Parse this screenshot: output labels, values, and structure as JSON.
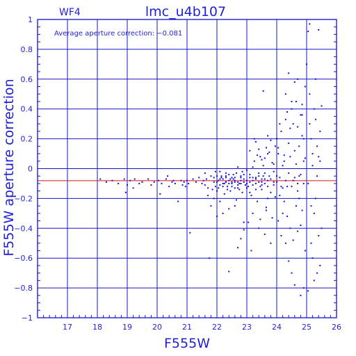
{
  "header": {
    "chip": "WF4",
    "title": "lmc_u4b107"
  },
  "annotation": "Average aperture correction: −0.081",
  "colors": {
    "frame": "#1010d0",
    "grid": "#1414c8",
    "text": "#1f1fd6",
    "points": "#1010e0",
    "mean_line": "#d01010"
  },
  "chart_data": {
    "type": "scatter",
    "title": "lmc_u4b107",
    "subtitle": "WF4",
    "xlabel": "F555W",
    "ylabel": "F555W aperture correction",
    "xlim": [
      16,
      26
    ],
    "ylim": [
      -1,
      1
    ],
    "xticks": [
      17,
      18,
      19,
      20,
      21,
      22,
      23,
      24,
      25,
      26
    ],
    "yticks": [
      -1,
      -0.8,
      -0.6,
      -0.4,
      -0.2,
      0,
      0.2,
      0.4,
      0.6,
      0.8,
      1
    ],
    "xtick_labels": [
      "17",
      "18",
      "19",
      "20",
      "21",
      "22",
      "23",
      "24",
      "25",
      "26"
    ],
    "ytick_labels": [
      "−1",
      "−0.8",
      "−0.6",
      "−0.4",
      "−0.2",
      "0",
      "0.2",
      "0.4",
      "0.6",
      "0.8",
      "1"
    ],
    "grid": true,
    "reference_line": {
      "y": -0.081
    },
    "points": [
      [
        18.1,
        -0.07
      ],
      [
        18.3,
        -0.09
      ],
      [
        18.5,
        -0.08
      ],
      [
        18.7,
        -0.1
      ],
      [
        18.9,
        -0.07
      ],
      [
        18.95,
        -0.16
      ],
      [
        19.0,
        -0.11
      ],
      [
        19.1,
        -0.08
      ],
      [
        19.2,
        -0.13
      ],
      [
        19.25,
        -0.07
      ],
      [
        19.4,
        -0.1
      ],
      [
        19.5,
        -0.09
      ],
      [
        19.7,
        -0.07
      ],
      [
        19.8,
        -0.11
      ],
      [
        19.9,
        -0.09
      ],
      [
        20.05,
        -0.08
      ],
      [
        20.1,
        -0.17
      ],
      [
        20.15,
        -0.1
      ],
      [
        20.3,
        -0.07
      ],
      [
        20.35,
        -0.05
      ],
      [
        20.4,
        -0.12
      ],
      [
        20.5,
        -0.09
      ],
      [
        20.55,
        -0.08
      ],
      [
        20.6,
        -0.1
      ],
      [
        20.7,
        -0.22
      ],
      [
        20.8,
        -0.08
      ],
      [
        20.85,
        -0.11
      ],
      [
        20.9,
        -0.09
      ],
      [
        20.95,
        -0.12
      ],
      [
        21.0,
        -0.08
      ],
      [
        21.05,
        -0.1
      ],
      [
        21.1,
        -0.43
      ],
      [
        21.2,
        -0.07
      ],
      [
        21.3,
        -0.09
      ],
      [
        21.4,
        -0.06
      ],
      [
        21.5,
        -0.1
      ],
      [
        21.55,
        -0.08
      ],
      [
        21.6,
        -0.11
      ],
      [
        21.65,
        -0.07
      ],
      [
        21.7,
        -0.13
      ],
      [
        21.75,
        -0.6
      ],
      [
        21.8,
        -0.05
      ],
      [
        21.85,
        -0.14
      ],
      [
        21.9,
        -0.09
      ],
      [
        21.95,
        -0.12
      ],
      [
        21.6,
        -0.03
      ],
      [
        21.7,
        -0.18
      ],
      [
        21.8,
        -0.25
      ],
      [
        21.9,
        -0.2
      ],
      [
        21.95,
        -0.02
      ],
      [
        22.0,
        -0.15
      ],
      [
        22.05,
        -0.08
      ],
      [
        22.1,
        -0.22
      ],
      [
        22.15,
        -0.05
      ],
      [
        22.2,
        -0.1
      ],
      [
        22.25,
        -0.17
      ],
      [
        22.3,
        -0.03
      ],
      [
        22.35,
        -0.12
      ],
      [
        22.4,
        -0.27
      ],
      [
        22.45,
        -0.07
      ],
      [
        22.0,
        -0.32
      ],
      [
        22.1,
        -0.02
      ],
      [
        22.2,
        -0.3
      ],
      [
        22.3,
        -0.06
      ],
      [
        22.35,
        -0.14
      ],
      [
        22.4,
        -0.69
      ],
      [
        22.5,
        -0.09
      ],
      [
        22.55,
        -0.04
      ],
      [
        22.6,
        -0.13
      ],
      [
        22.65,
        -0.21
      ],
      [
        22.7,
        0.01
      ],
      [
        22.75,
        -0.1
      ],
      [
        22.8,
        -0.06
      ],
      [
        22.85,
        -0.16
      ],
      [
        22.9,
        -0.36
      ],
      [
        22.0,
        -0.05
      ],
      [
        22.1,
        -0.11
      ],
      [
        22.2,
        -0.07
      ],
      [
        22.3,
        -0.09
      ],
      [
        22.4,
        -0.04
      ],
      [
        22.5,
        -0.12
      ],
      [
        22.6,
        -0.08
      ],
      [
        22.7,
        -0.11
      ],
      [
        22.8,
        -0.05
      ],
      [
        22.9,
        -0.09
      ],
      [
        22.05,
        -0.13
      ],
      [
        22.15,
        -0.06
      ],
      [
        22.25,
        -0.1
      ],
      [
        22.45,
        -0.15
      ],
      [
        22.55,
        -0.07
      ],
      [
        22.65,
        -0.03
      ],
      [
        22.75,
        -0.14
      ],
      [
        22.85,
        -0.02
      ],
      [
        22.95,
        -0.11
      ],
      [
        22.9,
        -0.41
      ],
      [
        22.8,
        -0.47
      ],
      [
        22.7,
        -0.53
      ],
      [
        22.6,
        -0.25
      ],
      [
        23.0,
        -0.08
      ],
      [
        23.05,
        -0.12
      ],
      [
        23.1,
        -0.04
      ],
      [
        23.15,
        -0.18
      ],
      [
        23.2,
        -0.06
      ],
      [
        23.25,
        0.05
      ],
      [
        23.3,
        -0.1
      ],
      [
        23.35,
        -0.22
      ],
      [
        23.4,
        -0.03
      ],
      [
        23.45,
        0.08
      ],
      [
        23.5,
        -0.14
      ],
      [
        23.55,
        0.02
      ],
      [
        23.6,
        -0.07
      ],
      [
        23.65,
        -0.28
      ],
      [
        23.7,
        0.1
      ],
      [
        23.75,
        -0.05
      ],
      [
        23.8,
        -0.16
      ],
      [
        23.85,
        0.04
      ],
      [
        23.9,
        -0.09
      ],
      [
        23.95,
        0.15
      ],
      [
        23.05,
        -0.36
      ],
      [
        23.1,
        0.12
      ],
      [
        23.2,
        -0.3
      ],
      [
        23.3,
        0.18
      ],
      [
        23.4,
        -0.4
      ],
      [
        23.5,
        0.06
      ],
      [
        23.6,
        -0.44
      ],
      [
        23.7,
        0.22
      ],
      [
        23.8,
        -0.5
      ],
      [
        23.9,
        0.03
      ],
      [
        23.15,
        -0.55
      ],
      [
        23.45,
        -0.34
      ],
      [
        23.55,
        0.52
      ],
      [
        23.65,
        -0.26
      ],
      [
        23.75,
        0.11
      ],
      [
        23.85,
        -0.33
      ],
      [
        23.95,
        -0.19
      ],
      [
        23.0,
        -0.01
      ],
      [
        23.1,
        -0.16
      ],
      [
        23.2,
        0.01
      ],
      [
        23.3,
        -0.07
      ],
      [
        23.4,
        0.13
      ],
      [
        23.5,
        -0.11
      ],
      [
        23.6,
        0.07
      ],
      [
        23.7,
        -0.2
      ],
      [
        23.8,
        0.19
      ],
      [
        23.9,
        -0.02
      ],
      [
        23.25,
        0.2
      ],
      [
        23.35,
        0.09
      ],
      [
        23.45,
        -0.12
      ],
      [
        23.55,
        -0.05
      ],
      [
        23.65,
        0.14
      ],
      [
        24.0,
        -0.05
      ],
      [
        24.05,
        0.1
      ],
      [
        24.1,
        -0.18
      ],
      [
        24.15,
        0.25
      ],
      [
        24.2,
        -0.3
      ],
      [
        24.25,
        0.05
      ],
      [
        24.3,
        0.33
      ],
      [
        24.35,
        -0.12
      ],
      [
        24.4,
        0.17
      ],
      [
        24.45,
        -0.4
      ],
      [
        24.5,
        0.4
      ],
      [
        24.55,
        -0.08
      ],
      [
        24.6,
        0.12
      ],
      [
        24.65,
        -0.25
      ],
      [
        24.7,
        0.28
      ],
      [
        24.0,
        0.2
      ],
      [
        24.05,
        -0.35
      ],
      [
        24.1,
        0.3
      ],
      [
        24.15,
        -0.45
      ],
      [
        24.2,
        0.02
      ],
      [
        24.25,
        -0.22
      ],
      [
        24.3,
        -0.5
      ],
      [
        24.35,
        0.38
      ],
      [
        24.4,
        -0.62
      ],
      [
        24.45,
        0.08
      ],
      [
        24.5,
        -0.7
      ],
      [
        24.55,
        0.3
      ],
      [
        24.6,
        -0.78
      ],
      [
        24.65,
        0.03
      ],
      [
        24.7,
        -0.15
      ],
      [
        24.3,
        0.5
      ],
      [
        24.4,
        0.64
      ],
      [
        24.5,
        0.45
      ],
      [
        24.6,
        0.58
      ],
      [
        24.7,
        0.6
      ],
      [
        24.75,
        -0.05
      ],
      [
        24.8,
        0.36
      ],
      [
        24.85,
        -0.28
      ],
      [
        24.9,
        0.2
      ],
      [
        24.95,
        -0.55
      ],
      [
        24.75,
        0.15
      ],
      [
        24.8,
        -0.38
      ],
      [
        24.85,
        0.43
      ],
      [
        24.9,
        -0.1
      ],
      [
        24.95,
        0.07
      ],
      [
        24.7,
        -0.42
      ],
      [
        24.8,
        -0.85
      ],
      [
        24.85,
        0.22
      ],
      [
        24.9,
        -0.8
      ],
      [
        24.95,
        0.55
      ],
      [
        24.9,
        0.05
      ],
      [
        24.85,
        0.36
      ],
      [
        24.75,
        -0.2
      ],
      [
        24.65,
        0.45
      ],
      [
        24.55,
        -0.48
      ],
      [
        24.45,
        0.27
      ],
      [
        24.35,
        -0.32
      ],
      [
        24.25,
        0.09
      ],
      [
        24.15,
        -0.12
      ],
      [
        24.05,
        0.14
      ],
      [
        25.0,
        0.7
      ],
      [
        25.05,
        -0.1
      ],
      [
        25.1,
        0.3
      ],
      [
        25.15,
        -0.5
      ],
      [
        25.2,
        0.1
      ],
      [
        25.25,
        -0.3
      ],
      [
        25.3,
        0.6
      ],
      [
        25.35,
        -0.7
      ],
      [
        25.4,
        0.93
      ],
      [
        25.45,
        0.05
      ],
      [
        25.5,
        -0.4
      ],
      [
        25.05,
        0.92
      ],
      [
        25.1,
        0.97
      ],
      [
        25.15,
        0.2
      ],
      [
        25.2,
        -0.6
      ],
      [
        25.25,
        0.4
      ],
      [
        25.3,
        -0.2
      ],
      [
        25.35,
        0.15
      ],
      [
        25.4,
        -0.45
      ],
      [
        25.45,
        0.25
      ],
      [
        25.5,
        0.42
      ],
      [
        25.05,
        -0.82
      ],
      [
        25.1,
        0.5
      ],
      [
        25.15,
        -0.25
      ],
      [
        25.2,
        0.02
      ],
      [
        25.25,
        -0.75
      ],
      [
        25.3,
        0.33
      ],
      [
        25.35,
        -0.05
      ],
      [
        25.4,
        0.08
      ],
      [
        25.45,
        -0.65
      ],
      [
        22.3,
        -0.09
      ],
      [
        22.4,
        -0.08
      ],
      [
        22.5,
        -0.1
      ],
      [
        22.6,
        -0.06
      ],
      [
        22.7,
        -0.09
      ],
      [
        22.8,
        -0.08
      ],
      [
        22.9,
        -0.07
      ],
      [
        23.0,
        -0.1
      ],
      [
        23.1,
        -0.09
      ],
      [
        23.2,
        -0.08
      ],
      [
        23.3,
        -0.06
      ],
      [
        23.4,
        -0.09
      ],
      [
        23.5,
        -0.07
      ],
      [
        23.6,
        -0.1
      ],
      [
        23.7,
        -0.08
      ],
      [
        21.9,
        -0.06
      ],
      [
        22.0,
        -0.09
      ],
      [
        22.1,
        -0.07
      ],
      [
        22.2,
        -0.12
      ],
      [
        22.3,
        -0.05
      ],
      [
        22.4,
        -0.1
      ],
      [
        22.5,
        -0.06
      ],
      [
        22.6,
        -0.09
      ],
      [
        22.7,
        -0.13
      ],
      [
        22.8,
        -0.1
      ],
      [
        22.9,
        -0.04
      ],
      [
        23.0,
        -0.13
      ],
      [
        23.1,
        -0.06
      ],
      [
        23.2,
        -0.11
      ],
      [
        23.3,
        -0.14
      ],
      [
        23.4,
        -0.05
      ],
      [
        23.5,
        -0.09
      ],
      [
        23.6,
        -0.03
      ],
      [
        23.7,
        -0.12
      ],
      [
        23.8,
        -0.07
      ],
      [
        23.9,
        -0.11
      ],
      [
        24.0,
        -0.09
      ],
      [
        24.1,
        -0.06
      ],
      [
        24.2,
        -0.13
      ],
      [
        24.3,
        -0.08
      ],
      [
        24.4,
        -0.03
      ],
      [
        24.5,
        -0.12
      ],
      [
        24.6,
        -0.06
      ],
      [
        24.7,
        -0.1
      ],
      [
        24.8,
        -0.04
      ]
    ]
  }
}
